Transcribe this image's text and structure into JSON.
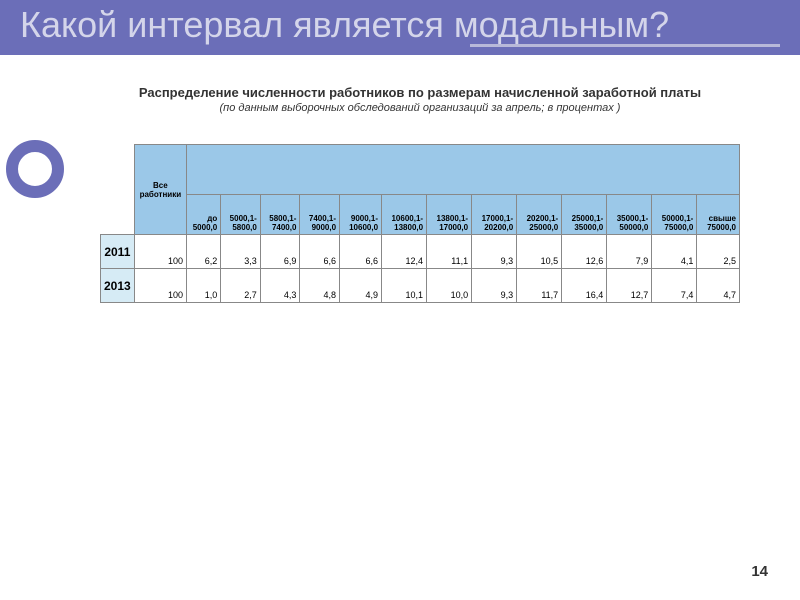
{
  "title": "Какой интервал является модальным?",
  "subtitle": "Распределение численности работников по размерам начисленной заработной платы",
  "subtitle_note": "(по данным  выборочных обследований организаций  за апрель; в процентах )",
  "table": {
    "all_label": "Все работники",
    "columns": [
      "до 5000,0",
      "5000,1-5800,0",
      "5800,1-7400,0",
      "7400,1-9000,0",
      "9000,1-10600,0",
      "10600,1-13800,0",
      "13800,1-17000,0",
      "17000,1-20200,0",
      "20200,1-25000,0",
      "25000,1-35000,0",
      "35000,1-50000,0",
      "50000,1-75000,0",
      "свыше 75000,0"
    ],
    "rows": [
      {
        "year": "2011",
        "all": "100",
        "values": [
          "6,2",
          "3,3",
          "6,9",
          "6,6",
          "6,6",
          "12,4",
          "11,1",
          "9,3",
          "10,5",
          "12,6",
          "7,9",
          "4,1",
          "2,5"
        ]
      },
      {
        "year": "2013",
        "all": "100",
        "values": [
          "1,0",
          "2,7",
          "4,3",
          "4,8",
          "4,9",
          "10,1",
          "10,0",
          "9,3",
          "11,7",
          "16,4",
          "12,7",
          "7,4",
          "4,7"
        ]
      }
    ]
  },
  "page_number": "14"
}
